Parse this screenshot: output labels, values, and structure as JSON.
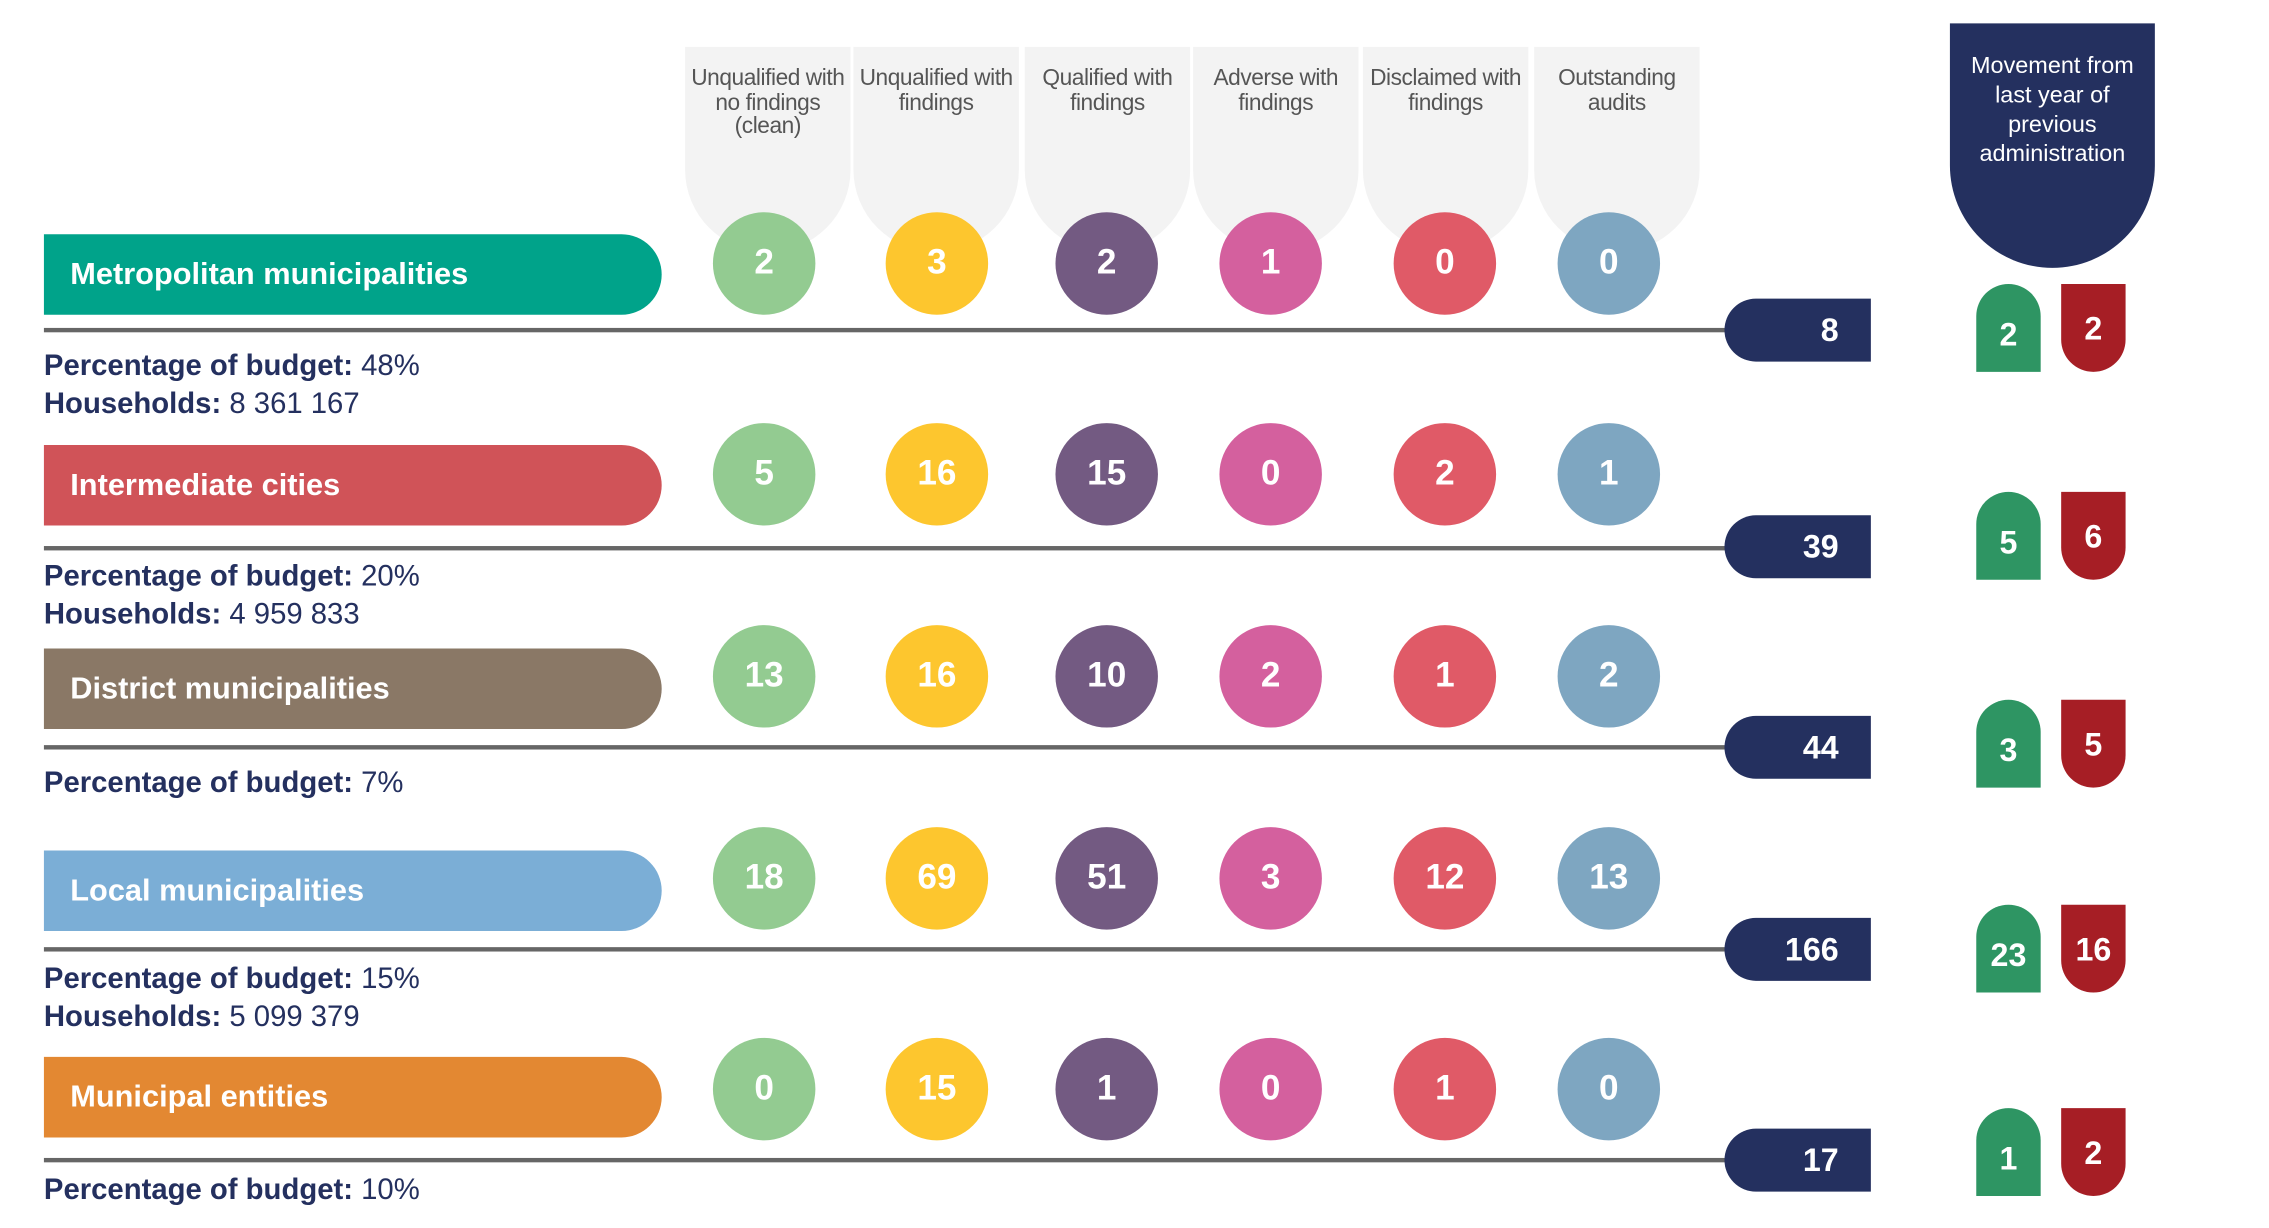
{
  "columns": [
    "Unqualified with no findings (clean)",
    "Unqualified with findings",
    "Qualified with findings",
    "Adverse with findings",
    "Disclaimed with findings",
    "Outstanding audits"
  ],
  "movement_header": "Movement from last year of previous administration",
  "colors": {
    "circles": [
      "#93cb91",
      "#fdc62e",
      "#735a82",
      "#d4609e",
      "#e05a67",
      "#7ea6c1"
    ],
    "navy": "#24305f",
    "improved": "#2e9563",
    "regressed": "#a61e25"
  },
  "budget_label": "Percentage of budget:",
  "households_label": "Households:",
  "rows": [
    {
      "label": "Metropolitan municipalities",
      "color": "#00a38a",
      "values": [
        "2",
        "3",
        "2",
        "1",
        "0",
        "0"
      ],
      "total": "8",
      "improved": "2",
      "regressed": "2",
      "budget": "48%",
      "households": "8 361 167"
    },
    {
      "label": "Intermediate cities",
      "color": "#d05358",
      "values": [
        "5",
        "16",
        "15",
        "0",
        "2",
        "1"
      ],
      "total": "39",
      "improved": "5",
      "regressed": "6",
      "budget": "20%",
      "households": "4 959 833"
    },
    {
      "label": "District municipalities",
      "color": "#8a7866",
      "values": [
        "13",
        "16",
        "10",
        "2",
        "1",
        "2"
      ],
      "total": "44",
      "improved": "3",
      "regressed": "5",
      "budget": "7%"
    },
    {
      "label": "Local municipalities",
      "color": "#7baed6",
      "values": [
        "18",
        "69",
        "51",
        "3",
        "12",
        "13"
      ],
      "total": "166",
      "improved": "23",
      "regressed": "16",
      "budget": "15%",
      "households": "5 099 379"
    },
    {
      "label": "Municipal entities",
      "color": "#e38832",
      "values": [
        "0",
        "15",
        "1",
        "0",
        "1",
        "0"
      ],
      "total": "17",
      "improved": "1",
      "regressed": "2",
      "budget": "10%"
    }
  ]
}
